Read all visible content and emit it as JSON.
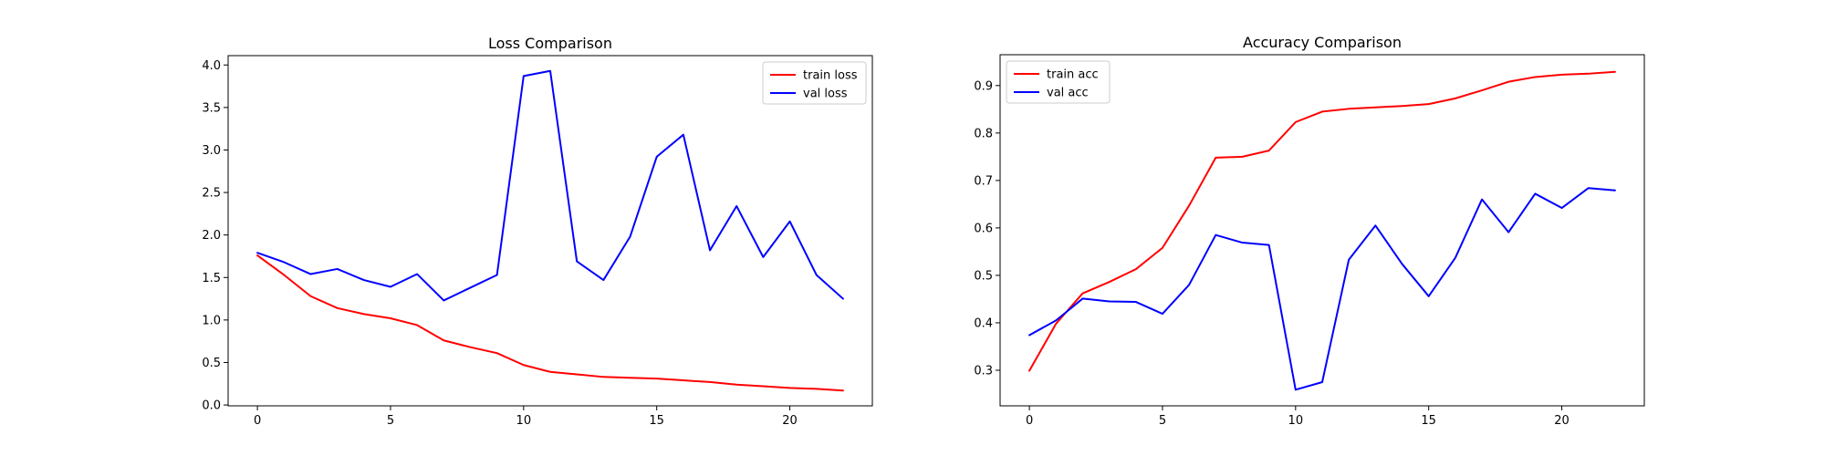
{
  "chart_data": [
    {
      "type": "line",
      "title": "Loss Comparison",
      "xlabel": "",
      "ylabel": "",
      "xlim": [
        -1.1,
        23.1
      ],
      "ylim": [
        -0.01,
        4.11
      ],
      "xticks": [
        0,
        5,
        10,
        15,
        20
      ],
      "yticks": [
        0.0,
        0.5,
        1.0,
        1.5,
        2.0,
        2.5,
        3.0,
        3.5,
        4.0
      ],
      "ytick_labels": [
        "0.0",
        "0.5",
        "1.0",
        "1.5",
        "2.0",
        "2.5",
        "3.0",
        "3.5",
        "4.0"
      ],
      "legend_position": "top-right",
      "grid": false,
      "x": [
        0,
        1,
        2,
        3,
        4,
        5,
        6,
        7,
        8,
        9,
        10,
        11,
        12,
        13,
        14,
        15,
        16,
        17,
        18,
        19,
        20,
        21,
        22
      ],
      "series": [
        {
          "name": "train loss",
          "color": "#ff0000",
          "values": [
            1.76,
            1.53,
            1.28,
            1.14,
            1.07,
            1.02,
            0.94,
            0.76,
            0.68,
            0.61,
            0.47,
            0.39,
            0.36,
            0.33,
            0.32,
            0.31,
            0.29,
            0.27,
            0.24,
            0.22,
            0.2,
            0.19,
            0.17
          ]
        },
        {
          "name": "val loss",
          "color": "#0000ff",
          "values": [
            1.79,
            1.68,
            1.54,
            1.6,
            1.47,
            1.39,
            1.54,
            1.23,
            1.38,
            1.53,
            3.87,
            3.93,
            1.69,
            1.47,
            1.98,
            2.92,
            3.18,
            1.82,
            2.34,
            1.74,
            2.16,
            1.53,
            1.25
          ]
        }
      ]
    },
    {
      "type": "line",
      "title": "Accuracy Comparison",
      "xlabel": "",
      "ylabel": "",
      "xlim": [
        -1.1,
        23.1
      ],
      "ylim": [
        0.225,
        0.965
      ],
      "xticks": [
        0,
        5,
        10,
        15,
        20
      ],
      "yticks": [
        0.3,
        0.4,
        0.5,
        0.6,
        0.7,
        0.8,
        0.9
      ],
      "ytick_labels": [
        "0.3",
        "0.4",
        "0.5",
        "0.6",
        "0.7",
        "0.8",
        "0.9"
      ],
      "legend_position": "top-left",
      "grid": false,
      "x": [
        0,
        1,
        2,
        3,
        4,
        5,
        6,
        7,
        8,
        9,
        10,
        11,
        12,
        13,
        14,
        15,
        16,
        17,
        18,
        19,
        20,
        21,
        22
      ],
      "series": [
        {
          "name": "train acc",
          "color": "#ff0000",
          "values": [
            0.299,
            0.398,
            0.462,
            0.486,
            0.513,
            0.558,
            0.647,
            0.748,
            0.75,
            0.763,
            0.823,
            0.845,
            0.851,
            0.854,
            0.857,
            0.861,
            0.873,
            0.89,
            0.908,
            0.918,
            0.923,
            0.925,
            0.929
          ]
        },
        {
          "name": "val acc",
          "color": "#0000ff",
          "values": [
            0.374,
            0.405,
            0.451,
            0.445,
            0.444,
            0.419,
            0.48,
            0.585,
            0.569,
            0.564,
            0.259,
            0.275,
            0.533,
            0.605,
            0.524,
            0.456,
            0.537,
            0.66,
            0.591,
            0.672,
            0.642,
            0.684,
            0.679
          ]
        }
      ]
    }
  ]
}
